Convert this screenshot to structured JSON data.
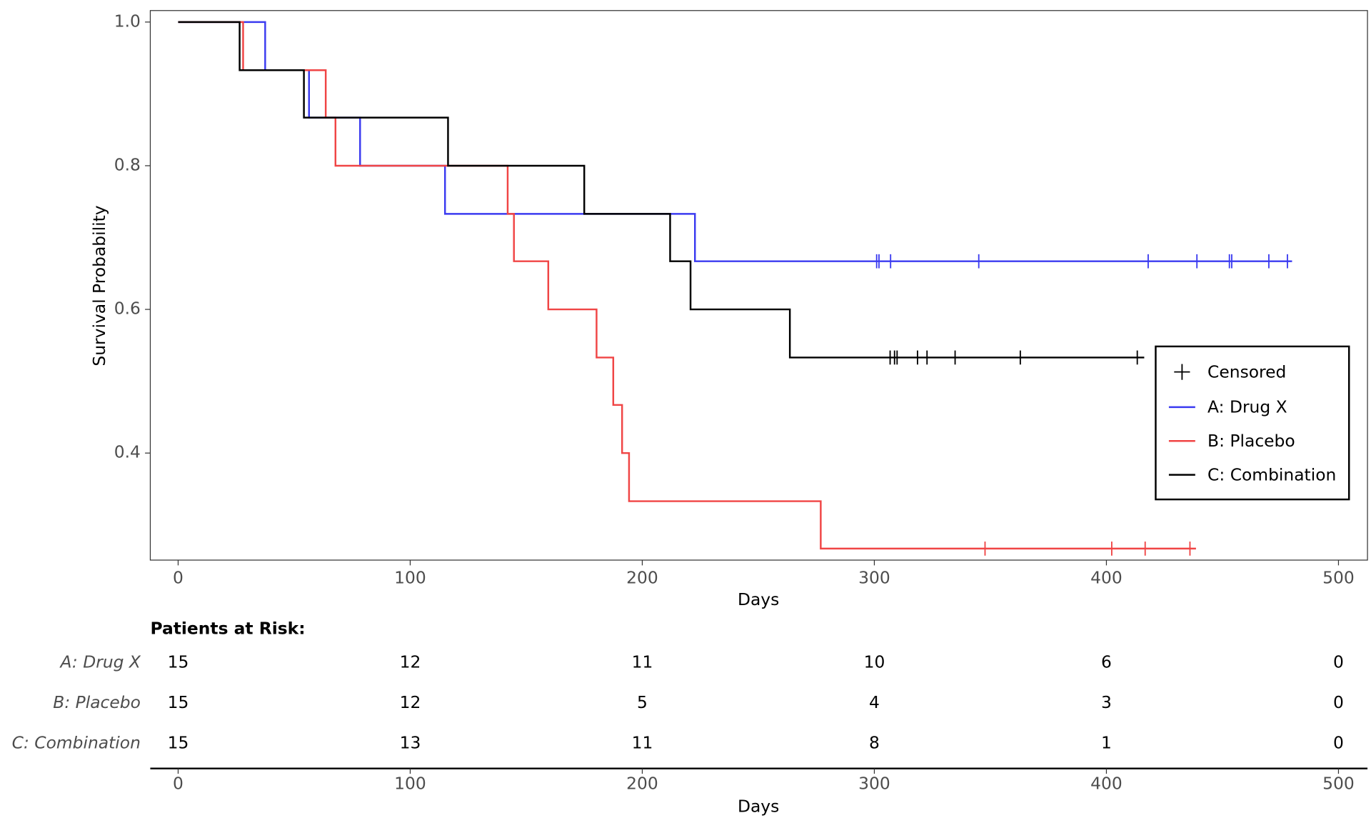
{
  "chart_data": {
    "type": "survival",
    "xlabel": "Days",
    "ylabel": "Survival Probability",
    "xlim": [
      -12,
      512.5
    ],
    "ylim": [
      0.251,
      1.016
    ],
    "xticks": [
      0,
      100,
      200,
      300,
      400,
      500
    ],
    "yticks": [
      {
        "value": 1,
        "label": "1.0"
      },
      0.8,
      0.6,
      0.4
    ],
    "legend": {
      "position": "right",
      "censor_label": "Censored"
    },
    "series": [
      {
        "name": "A: Drug X",
        "color": "#3b3bf0",
        "x": [
          0,
          37.5,
          56.4,
          78.4,
          115,
          222.7,
          480
        ],
        "values": [
          1,
          0.933,
          0.867,
          0.8,
          0.733,
          0.667,
          0.667
        ],
        "censor_x": [
          301,
          302,
          307,
          345,
          418,
          439,
          453,
          454,
          470,
          478
        ],
        "censor_y": [
          0.667,
          0.667,
          0.667,
          0.667,
          0.667,
          0.667,
          0.667,
          0.667,
          0.667,
          0.667
        ]
      },
      {
        "name": "B: Placebo",
        "color": "#f04545",
        "x": [
          0,
          28,
          63.6,
          67.8,
          142,
          144.7,
          159.5,
          180.3,
          187.5,
          191.3,
          194.3,
          276.9,
          438.6
        ],
        "values": [
          1,
          0.933,
          0.867,
          0.8,
          0.733,
          0.667,
          0.6,
          0.533,
          0.467,
          0.4,
          0.333,
          0.267,
          0.267
        ],
        "censor_x": [
          347.7,
          402.3,
          416.7,
          436
        ],
        "censor_y": [
          0.267,
          0.267,
          0.267,
          0.267
        ]
      },
      {
        "name": "C: Combination",
        "color": "#000000",
        "x": [
          0,
          26.5,
          54.2,
          116.3,
          175,
          212,
          220.8,
          263.6,
          416.3
        ],
        "values": [
          1,
          0.933,
          0.867,
          0.8,
          0.733,
          0.667,
          0.6,
          0.533,
          0.533
        ],
        "censor_x": [
          306.8,
          308.7,
          309.8,
          318.6,
          322.7,
          334.8,
          362.9,
          413.3
        ],
        "censor_y": [
          0.533,
          0.533,
          0.533,
          0.533,
          0.533,
          0.533,
          0.533,
          0.533
        ]
      }
    ],
    "risk_table": {
      "title": "Patients at Risk:",
      "xlabel": "Days",
      "rows": [
        {
          "name": "A: Drug X",
          "values": [
            15,
            12,
            11,
            10,
            6,
            0
          ]
        },
        {
          "name": "B: Placebo",
          "values": [
            15,
            12,
            5,
            4,
            3,
            0
          ]
        },
        {
          "name": "C: Combination",
          "values": [
            15,
            13,
            11,
            8,
            1,
            0
          ]
        }
      ]
    }
  }
}
